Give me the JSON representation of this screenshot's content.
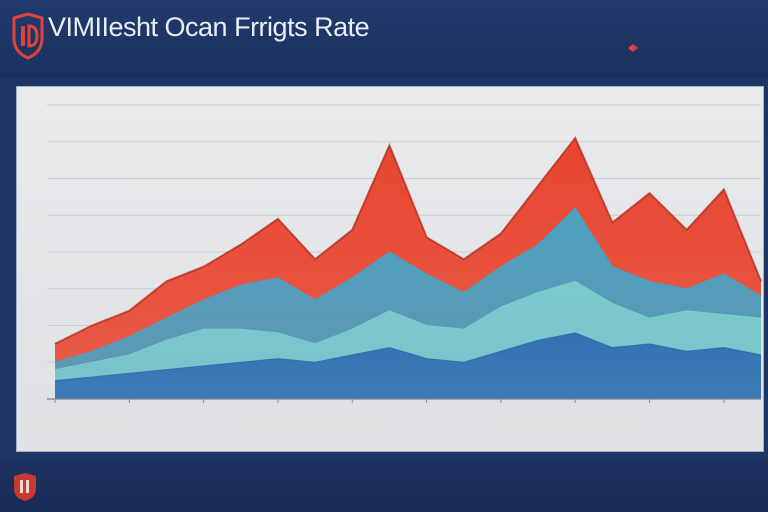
{
  "header": {
    "title": "VIMIIesht Ocan Frrigts Rate",
    "subtitle": "",
    "legend_a": "",
    "legend_b": [
      "",
      ""
    ]
  },
  "footer": {
    "text": ""
  },
  "colors": {
    "background": "#1d3563",
    "panel": "#e7e8ea",
    "red_series": "#e8452f",
    "light_blue_series": "#3aa9cf",
    "teal_series": "#7fcfd0",
    "dark_blue_series": "#2c67b0"
  },
  "icons": {
    "header_logo": "shield-logo-icon",
    "footer_logo": "shield-logo-icon"
  },
  "chart_data": {
    "type": "area",
    "title": "VIMIIesht Ocan Frrigts Rate",
    "xlabel": "",
    "ylabel": "",
    "x": [
      1,
      2,
      3,
      4,
      5,
      6,
      7,
      8,
      9,
      10,
      11,
      12,
      13,
      14,
      15,
      16,
      17,
      18,
      19,
      20
    ],
    "ylim": [
      0,
      8
    ],
    "grid": true,
    "legend": "top-right",
    "series": [
      {
        "name": "",
        "color": "#e8452f",
        "values": [
          1.5,
          2.0,
          2.4,
          3.2,
          3.6,
          4.2,
          4.9,
          3.8,
          4.6,
          6.9,
          4.4,
          3.8,
          4.5,
          5.8,
          7.1,
          4.8,
          5.6,
          4.6,
          5.7,
          3.2
        ]
      },
      {
        "name": "",
        "color": "#3aa9cf",
        "values": [
          1.0,
          1.3,
          1.7,
          2.2,
          2.7,
          3.1,
          3.3,
          2.7,
          3.3,
          4.0,
          3.4,
          2.9,
          3.6,
          4.2,
          5.2,
          3.6,
          3.2,
          3.0,
          3.4,
          2.8
        ]
      },
      {
        "name": "",
        "color": "#7fcfd0",
        "values": [
          0.8,
          1.0,
          1.2,
          1.6,
          1.9,
          1.9,
          1.8,
          1.5,
          1.9,
          2.4,
          2.0,
          1.9,
          2.5,
          2.9,
          3.2,
          2.6,
          2.2,
          2.4,
          2.3,
          2.2
        ]
      },
      {
        "name": "",
        "color": "#2c67b0",
        "values": [
          0.5,
          0.6,
          0.7,
          0.8,
          0.9,
          1.0,
          1.1,
          1.0,
          1.2,
          1.4,
          1.1,
          1.0,
          1.3,
          1.6,
          1.8,
          1.4,
          1.5,
          1.3,
          1.4,
          1.2
        ]
      }
    ]
  }
}
